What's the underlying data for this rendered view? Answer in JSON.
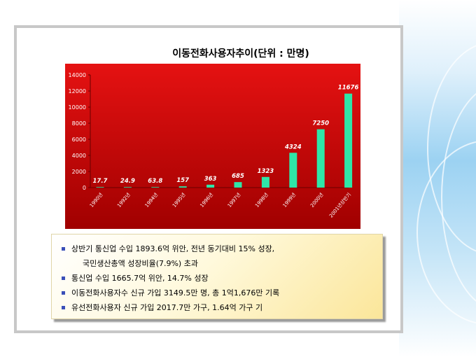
{
  "chart_data": {
    "type": "bar",
    "title": "이동전화사용자추이(단위 : 만명)",
    "categories": [
      "1990년",
      "1992년",
      "1994년",
      "1995년",
      "1996년",
      "1997년",
      "1998년",
      "1999년",
      "2000년",
      "2001년상반기"
    ],
    "values": [
      17.7,
      24.9,
      63.8,
      157,
      363,
      685,
      1323,
      4324,
      7250,
      11676
    ],
    "value_labels": [
      "17.7",
      "24.9",
      "63.8",
      "157",
      "363",
      "685",
      "1323",
      "4324",
      "7250",
      "11676"
    ],
    "yticks": [
      "0",
      "2000",
      "4000",
      "6000",
      "8000",
      "10000",
      "12000",
      "14000"
    ],
    "ylim": [
      0,
      14000
    ],
    "grid": false,
    "colors": {
      "bar": "#2fe6a8",
      "plot_bg_top": "#e01010",
      "plot_bg_bottom": "#9e0000"
    }
  },
  "bullets": [
    {
      "text": "상반기 통신업 수입 1893.6억 위안, 전년 동기대비 15% 성장,"
    },
    {
      "text": "국민생산총액 성장비율(7.9%)  초과",
      "continuation": true
    },
    {
      "text": "통신업 수입 1665.7억 위안, 14.7% 성장"
    },
    {
      "text": "이동전화사용자수 신규 가입 3149.5만 명, 총 1억1,676만 기록"
    },
    {
      "text": "유선전화사용자 신규 가입 2017.7만 가구, 1.64억 가구 기"
    }
  ]
}
